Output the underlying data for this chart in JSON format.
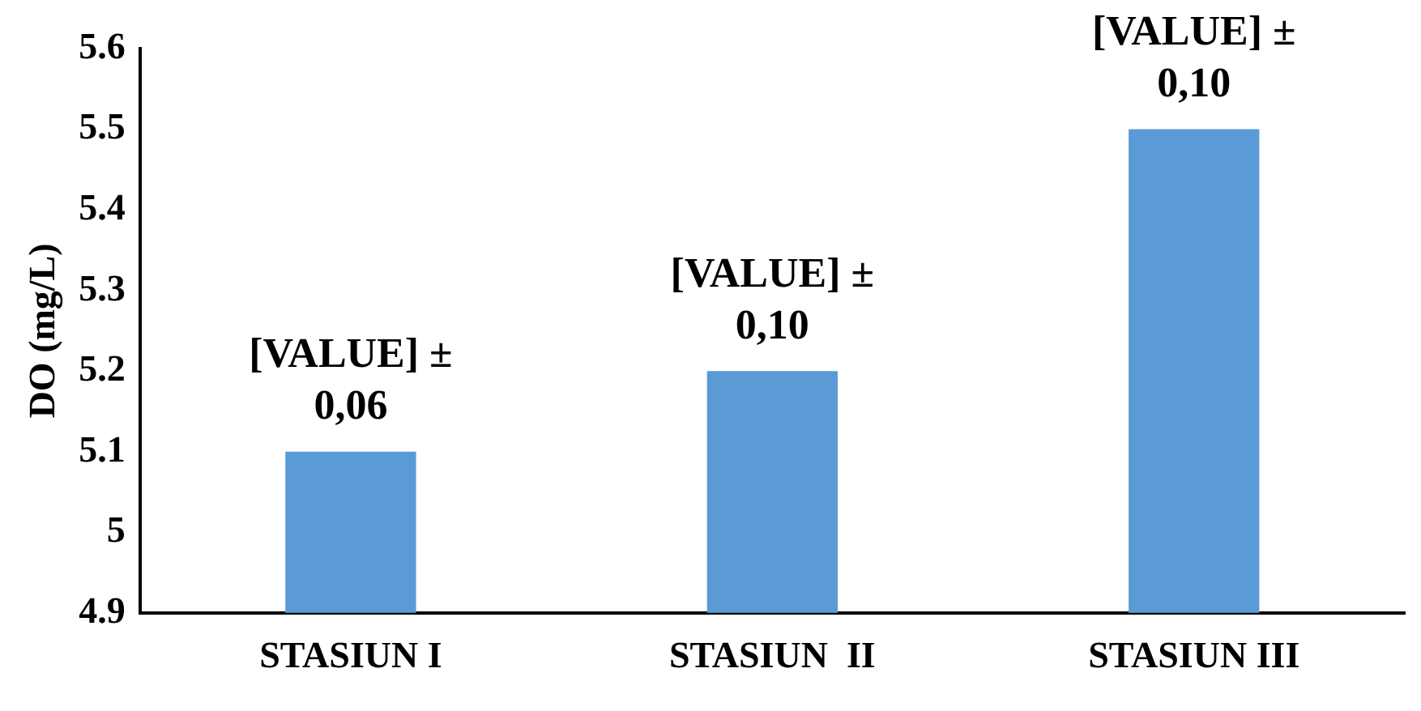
{
  "chart_data": {
    "type": "bar",
    "ylabel": "DO (mg/L)",
    "categories": [
      "STASIUN I",
      "STASIUN  II",
      "STASIUN III"
    ],
    "values": [
      5.1,
      5.2,
      5.5
    ],
    "color": "#5b9bd5",
    "annotations": [
      {
        "text": "[VALUE] ± 0,06",
        "x": "STASIUN I",
        "y": 5.1
      },
      {
        "text": "[VALUE] ± 0,10",
        "x": "STASIUN  II",
        "y": 5.2
      },
      {
        "text": "[VALUE] ± 0,10",
        "x": "STASIUN III",
        "y": 5.5
      }
    ],
    "ylim": [
      4.9,
      5.6
    ],
    "yticks": [
      4.9,
      5,
      5.1,
      5.2,
      5.3,
      5.4,
      5.5,
      5.6
    ],
    "grid": false,
    "legend": false
  }
}
